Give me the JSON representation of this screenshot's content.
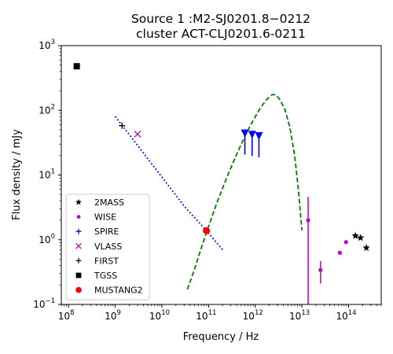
{
  "chart_data": {
    "type": "scatter",
    "title_line1": "Source 1 :M2-SJ0201.8−0212",
    "title_line2": "cluster ACT-CLJ0201.6-0211",
    "xlabel": "Frequency / Hz",
    "ylabel": "Flux density / mJy",
    "x_scale": "log",
    "y_scale": "log",
    "xlim": [
      70000000,
      500000000000000
    ],
    "ylim": [
      0.1,
      1000
    ],
    "x_ticks": [
      {
        "value": 100000000,
        "base": "10",
        "exp": "8"
      },
      {
        "value": 1000000000,
        "base": "10",
        "exp": "9"
      },
      {
        "value": 10000000000,
        "base": "10",
        "exp": "10"
      },
      {
        "value": 100000000000,
        "base": "10",
        "exp": "11"
      },
      {
        "value": 1000000000000,
        "base": "10",
        "exp": "12"
      },
      {
        "value": 10000000000000,
        "base": "10",
        "exp": "13"
      },
      {
        "value": 100000000000000,
        "base": "10",
        "exp": "14"
      }
    ],
    "y_ticks": [
      {
        "value": 0.1,
        "base": "10",
        "exp": "−1"
      },
      {
        "value": 1,
        "base": "10",
        "exp": "0"
      },
      {
        "value": 10,
        "base": "10",
        "exp": "1"
      },
      {
        "value": 100,
        "base": "10",
        "exp": "2"
      },
      {
        "value": 1000,
        "base": "10",
        "exp": "3"
      }
    ],
    "grid": false,
    "legend_position": "lower-left",
    "series": [
      {
        "name": "2MASS",
        "marker": "star",
        "color": "#000000",
        "points": [
          [
            140000000000000,
            1.15
          ],
          [
            180000000000000,
            1.07
          ],
          [
            240000000000000,
            0.75
          ]
        ]
      },
      {
        "name": "WISE",
        "marker": "dot",
        "color": "#bf00bf",
        "points": [
          [
            13600000000000,
            2.0
          ],
          [
            25000000000000,
            0.34
          ],
          [
            65000000000000,
            0.63
          ],
          [
            88000000000000,
            0.92
          ]
        ],
        "errorbars": [
          [
            13600000000000,
            0.1,
            4.6
          ],
          [
            25000000000000,
            0.21,
            0.47
          ]
        ]
      },
      {
        "name": "SPIRE",
        "marker": "plus",
        "color": "#0000ff",
        "upper_limits": [
          [
            600000000000,
            44
          ],
          [
            857000000000,
            42
          ],
          [
            1200000000000,
            40
          ]
        ]
      },
      {
        "name": "VLASS",
        "marker": "x",
        "color": "#bf00bf",
        "points": [
          [
            3000000000,
            43
          ]
        ]
      },
      {
        "name": "FIRST",
        "marker": "plus",
        "color": "#000000",
        "points": [
          [
            1400000000,
            58
          ]
        ]
      },
      {
        "name": "TGSS",
        "marker": "square",
        "color": "#000000",
        "points": [
          [
            150000000,
            480
          ]
        ]
      },
      {
        "name": "MUSTANG2",
        "marker": "circle",
        "color": "#ff0000",
        "points": [
          [
            90000000000,
            1.38
          ]
        ]
      }
    ],
    "model_lines": [
      {
        "style": "dotted",
        "color": "#0000ff",
        "points": [
          [
            1000000000,
            80
          ],
          [
            2000000000,
            42
          ],
          [
            5000000000,
            17.8
          ],
          [
            10000000000,
            9.3
          ],
          [
            30000000000,
            3.3
          ],
          [
            90000000000,
            1.38
          ],
          [
            200000000000,
            0.7
          ]
        ]
      },
      {
        "style": "dashed",
        "color": "#008000",
        "points": [
          [
            35000000000,
            0.17
          ],
          [
            50000000000,
            0.35
          ],
          [
            70000000000,
            0.75
          ],
          [
            100000000000,
            1.6
          ],
          [
            150000000000,
            3.7
          ],
          [
            250000000000,
            9.5
          ],
          [
            400000000000,
            21
          ],
          [
            600000000000,
            40
          ],
          [
            900000000000,
            70
          ],
          [
            1300000000000,
            110
          ],
          [
            1800000000000,
            150
          ],
          [
            2300000000000,
            175
          ],
          [
            2700000000000,
            175
          ],
          [
            3300000000000,
            150
          ],
          [
            4300000000000,
            105
          ],
          [
            5500000000000,
            55
          ],
          [
            7000000000000,
            20
          ],
          [
            8500000000000,
            5.5
          ],
          [
            10000000000000,
            1.4
          ]
        ]
      }
    ]
  }
}
